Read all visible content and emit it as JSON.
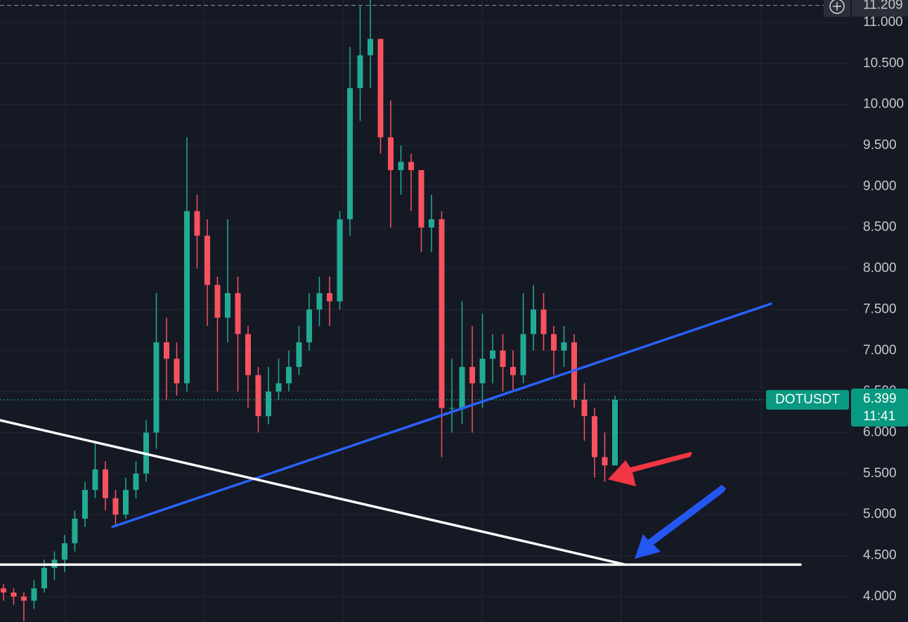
{
  "chart_data": {
    "type": "candlestick",
    "symbol": "DOTUSDT",
    "last_price": 6.399,
    "countdown": "11:41",
    "max_price": 11.209,
    "xlim": [
      -0.34,
      83.1
    ],
    "ylim": [
      3.69,
      11.274
    ],
    "yticks": [
      {
        "value": 4,
        "label": "4.000"
      },
      {
        "value": 4.5,
        "label": "4.500"
      },
      {
        "value": 5,
        "label": "5.000"
      },
      {
        "value": 5.5,
        "label": "5.500"
      },
      {
        "value": 6,
        "label": "6.000"
      },
      {
        "value": 6.5,
        "label": "6.500"
      },
      {
        "value": 7,
        "label": "7.000"
      },
      {
        "value": 7.5,
        "label": "7.500"
      },
      {
        "value": 8,
        "label": "8.000"
      },
      {
        "value": 8.5,
        "label": "8.500"
      },
      {
        "value": 9,
        "label": "9.000"
      },
      {
        "value": 9.5,
        "label": "9.500"
      },
      {
        "value": 10,
        "label": "10.000"
      },
      {
        "value": 10.5,
        "label": "10.500"
      },
      {
        "value": 11,
        "label": "11.000"
      }
    ],
    "grid": true,
    "up_color": "#22ab94",
    "down_color": "#f7525f",
    "open": [
      4.1,
      4.05,
      4.0,
      3.95,
      4.1,
      4.35,
      4.45,
      4.65,
      4.95,
      5.3,
      5.55,
      5.2,
      5.0,
      5.3,
      5.5,
      6.0,
      7.1,
      6.9,
      6.6,
      8.7,
      8.4,
      7.8,
      7.4,
      7.7,
      7.2,
      6.7,
      6.2,
      6.5,
      6.6,
      6.8,
      7.1,
      7.5,
      7.7,
      7.6,
      8.6,
      10.2,
      10.6,
      10.8,
      9.6,
      9.2,
      9.3,
      9.2,
      8.5,
      8.6,
      6.3,
      6.3,
      6.8,
      6.6,
      6.9,
      7.0,
      6.8,
      6.7,
      7.2,
      7.5,
      7.2,
      7.0,
      7.1,
      6.4,
      6.2,
      5.7,
      5.6
    ],
    "high": [
      4.15,
      4.1,
      4.05,
      4.2,
      4.45,
      4.55,
      4.75,
      5.05,
      5.4,
      5.9,
      5.65,
      5.3,
      5.45,
      5.65,
      6.15,
      7.7,
      7.4,
      7.1,
      9.6,
      8.9,
      8.6,
      7.9,
      8.6,
      7.9,
      7.3,
      6.8,
      6.8,
      6.9,
      7.0,
      7.3,
      7.7,
      7.9,
      7.9,
      8.7,
      10.7,
      11.2,
      11.3,
      10.8,
      10.05,
      9.5,
      9.4,
      9.2,
      8.9,
      8.7,
      6.9,
      7.6,
      7.3,
      7.45,
      7.2,
      7.2,
      7.0,
      7.7,
      7.8,
      7.7,
      7.3,
      7.3,
      7.2,
      6.6,
      6.3,
      6.0,
      6.45
    ],
    "low": [
      3.95,
      3.9,
      3.7,
      3.85,
      4.05,
      4.2,
      4.3,
      4.55,
      4.85,
      5.2,
      5.05,
      4.85,
      4.95,
      5.2,
      5.4,
      5.8,
      6.4,
      6.45,
      6.5,
      8.0,
      7.3,
      6.5,
      7.1,
      6.5,
      6.3,
      6.0,
      6.1,
      6.4,
      6.5,
      6.7,
      7.0,
      7.3,
      7.3,
      7.5,
      8.4,
      9.8,
      10.2,
      9.4,
      8.5,
      8.9,
      8.7,
      8.2,
      8.2,
      5.7,
      6.0,
      6.1,
      6.0,
      6.3,
      6.6,
      6.5,
      6.5,
      6.6,
      7.0,
      7.0,
      6.7,
      6.8,
      6.3,
      5.9,
      5.45,
      5.4,
      5.6
    ],
    "close": [
      4.05,
      4.0,
      3.95,
      4.1,
      4.35,
      4.45,
      4.65,
      4.95,
      5.3,
      5.55,
      5.2,
      5.0,
      5.3,
      5.5,
      6.0,
      7.1,
      6.9,
      6.6,
      8.7,
      8.4,
      7.8,
      7.4,
      7.7,
      7.2,
      6.7,
      6.2,
      6.5,
      6.6,
      6.8,
      7.1,
      7.5,
      7.7,
      7.6,
      8.6,
      10.2,
      10.6,
      10.8,
      9.6,
      9.2,
      9.3,
      9.2,
      8.5,
      8.6,
      6.3,
      6.3,
      6.8,
      6.6,
      6.9,
      7.0,
      6.8,
      6.7,
      7.2,
      7.5,
      7.2,
      7.0,
      7.1,
      6.4,
      6.2,
      5.7,
      5.6,
      6.399
    ],
    "trendlines": [
      {
        "color": "#2962ff",
        "x": [
          10.7,
          75.3
        ],
        "y": [
          4.85,
          7.57
        ]
      },
      {
        "color": "#ffffff",
        "x": [
          -0.34,
          61.0
        ],
        "y": [
          6.15,
          4.39
        ]
      },
      {
        "color": "#ffffff",
        "x": [
          -0.34,
          78.2
        ],
        "y": [
          4.39,
          4.39
        ]
      }
    ]
  }
}
